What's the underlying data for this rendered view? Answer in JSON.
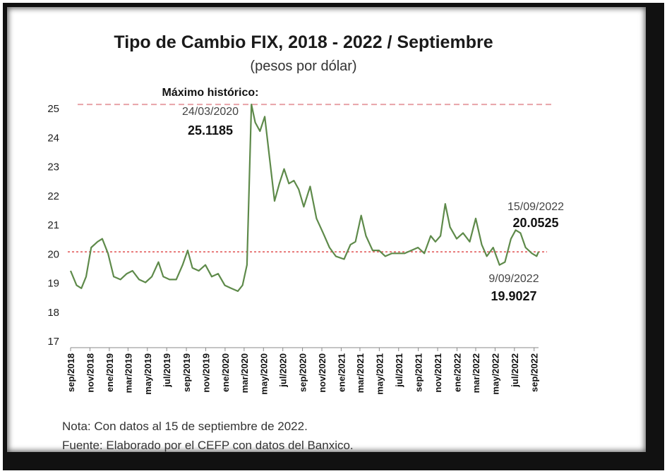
{
  "chart_data": {
    "type": "line",
    "title": "Tipo de Cambio FIX, 2018 - 2022 / Septiembre",
    "subtitle": "(pesos por dólar)",
    "ylim": [
      17,
      25
    ],
    "yticks": [
      17,
      18,
      19,
      20,
      21,
      22,
      23,
      24,
      25
    ],
    "x_range": [
      "2018-09-01",
      "2022-09-15"
    ],
    "x_tick_labels": [
      {
        "label": "sep/2018",
        "date": "2018-09-01"
      },
      {
        "label": "nov/2018",
        "date": "2018-11-01"
      },
      {
        "label": "ene/2019",
        "date": "2019-01-01"
      },
      {
        "label": "mar/2019",
        "date": "2019-03-01"
      },
      {
        "label": "may/2019",
        "date": "2019-05-01"
      },
      {
        "label": "jul/2019",
        "date": "2019-07-01"
      },
      {
        "label": "sep/2019",
        "date": "2019-09-01"
      },
      {
        "label": "nov/2019",
        "date": "2019-11-01"
      },
      {
        "label": "ene/2020",
        "date": "2020-01-01"
      },
      {
        "label": "mar/2020",
        "date": "2020-03-01"
      },
      {
        "label": "may/2020",
        "date": "2020-05-01"
      },
      {
        "label": "jul/2020",
        "date": "2020-07-01"
      },
      {
        "label": "sep/2020",
        "date": "2020-09-01"
      },
      {
        "label": "nov/2020",
        "date": "2020-11-01"
      },
      {
        "label": "ene/2021",
        "date": "2021-01-01"
      },
      {
        "label": "mar/2021",
        "date": "2021-03-01"
      },
      {
        "label": "may/2021",
        "date": "2021-05-01"
      },
      {
        "label": "jul/2021",
        "date": "2021-07-01"
      },
      {
        "label": "sep/2021",
        "date": "2021-09-01"
      },
      {
        "label": "nov/2021",
        "date": "2021-11-01"
      },
      {
        "label": "ene/2022",
        "date": "2022-01-01"
      },
      {
        "label": "mar/2022",
        "date": "2022-03-01"
      },
      {
        "label": "may/2022",
        "date": "2022-05-01"
      },
      {
        "label": "jul/2022",
        "date": "2022-07-01"
      },
      {
        "label": "sep/2022",
        "date": "2022-09-01"
      }
    ],
    "series": [
      {
        "color": "#5e8a4a",
        "points": [
          [
            "2018-09-01",
            19.4
          ],
          [
            "2018-09-20",
            18.9
          ],
          [
            "2018-10-05",
            18.8
          ],
          [
            "2018-10-20",
            19.2
          ],
          [
            "2018-11-05",
            20.2
          ],
          [
            "2018-11-25",
            20.4
          ],
          [
            "2018-12-10",
            20.5
          ],
          [
            "2018-12-28",
            20.0
          ],
          [
            "2019-01-15",
            19.2
          ],
          [
            "2019-02-05",
            19.1
          ],
          [
            "2019-02-25",
            19.3
          ],
          [
            "2019-03-15",
            19.4
          ],
          [
            "2019-04-05",
            19.1
          ],
          [
            "2019-04-25",
            19.0
          ],
          [
            "2019-05-15",
            19.2
          ],
          [
            "2019-06-05",
            19.7
          ],
          [
            "2019-06-20",
            19.2
          ],
          [
            "2019-07-10",
            19.1
          ],
          [
            "2019-07-31",
            19.1
          ],
          [
            "2019-08-20",
            19.6
          ],
          [
            "2019-09-05",
            20.1
          ],
          [
            "2019-09-20",
            19.5
          ],
          [
            "2019-10-10",
            19.4
          ],
          [
            "2019-10-31",
            19.6
          ],
          [
            "2019-11-20",
            19.2
          ],
          [
            "2019-12-10",
            19.3
          ],
          [
            "2019-12-31",
            18.9
          ],
          [
            "2020-01-20",
            18.8
          ],
          [
            "2020-02-10",
            18.7
          ],
          [
            "2020-02-25",
            18.9
          ],
          [
            "2020-03-10",
            19.6
          ],
          [
            "2020-03-24",
            25.1185
          ],
          [
            "2020-04-05",
            24.5
          ],
          [
            "2020-04-20",
            24.2
          ],
          [
            "2020-05-05",
            24.7
          ],
          [
            "2020-05-20",
            23.3
          ],
          [
            "2020-06-05",
            21.8
          ],
          [
            "2020-06-20",
            22.4
          ],
          [
            "2020-07-05",
            22.9
          ],
          [
            "2020-07-20",
            22.4
          ],
          [
            "2020-08-05",
            22.5
          ],
          [
            "2020-08-20",
            22.2
          ],
          [
            "2020-09-05",
            21.6
          ],
          [
            "2020-09-25",
            22.3
          ],
          [
            "2020-10-15",
            21.2
          ],
          [
            "2020-11-05",
            20.7
          ],
          [
            "2020-11-25",
            20.2
          ],
          [
            "2020-12-15",
            19.9
          ],
          [
            "2021-01-10",
            19.8
          ],
          [
            "2021-01-30",
            20.3
          ],
          [
            "2021-02-15",
            20.4
          ],
          [
            "2021-03-05",
            21.3
          ],
          [
            "2021-03-20",
            20.6
          ],
          [
            "2021-04-10",
            20.1
          ],
          [
            "2021-04-30",
            20.1
          ],
          [
            "2021-05-20",
            19.9
          ],
          [
            "2021-06-10",
            20.0
          ],
          [
            "2021-06-30",
            20.0
          ],
          [
            "2021-07-20",
            20.0
          ],
          [
            "2021-08-10",
            20.1
          ],
          [
            "2021-08-31",
            20.2
          ],
          [
            "2021-09-20",
            20.0
          ],
          [
            "2021-10-10",
            20.6
          ],
          [
            "2021-10-25",
            20.4
          ],
          [
            "2021-11-10",
            20.6
          ],
          [
            "2021-11-25",
            21.7
          ],
          [
            "2021-12-10",
            20.9
          ],
          [
            "2021-12-31",
            20.5
          ],
          [
            "2022-01-20",
            20.7
          ],
          [
            "2022-02-10",
            20.4
          ],
          [
            "2022-03-01",
            21.2
          ],
          [
            "2022-03-20",
            20.3
          ],
          [
            "2022-04-05",
            19.9
          ],
          [
            "2022-04-25",
            20.2
          ],
          [
            "2022-05-15",
            19.6
          ],
          [
            "2022-06-01",
            19.7
          ],
          [
            "2022-06-20",
            20.5
          ],
          [
            "2022-07-05",
            20.8
          ],
          [
            "2022-07-20",
            20.7
          ],
          [
            "2022-08-05",
            20.2
          ],
          [
            "2022-08-25",
            20.0
          ],
          [
            "2022-09-09",
            19.9027
          ],
          [
            "2022-09-15",
            20.0525
          ]
        ]
      }
    ],
    "reference_lines": [
      {
        "y": 25.1185,
        "color": "#e8a3a8",
        "style": "dashed"
      },
      {
        "y": 20.0525,
        "color": "#e05050",
        "style": "dotted"
      }
    ],
    "annotations": [
      {
        "heading": "Máximo histórico:",
        "date": "24/03/2020",
        "value": "25.1185"
      },
      {
        "date": "15/09/2022",
        "value": "20.0525"
      },
      {
        "date": "9/09/2022",
        "value": "19.9027"
      }
    ],
    "grid": false,
    "legend": "none"
  },
  "notes": {
    "nota": "Nota: Con datos al 15 de septiembre de 2022.",
    "fuente": "Fuente: Elaborado por el CEFP con datos del Banxico."
  }
}
